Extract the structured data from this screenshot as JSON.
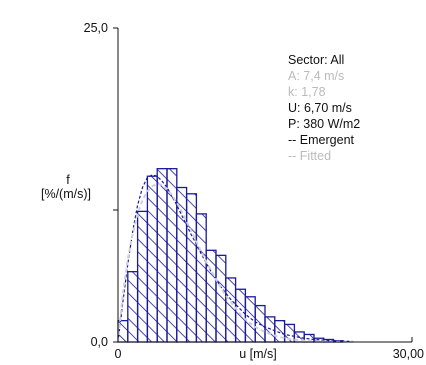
{
  "chart_data": {
    "type": "bar",
    "title": "",
    "xlabel": "u [m/s]",
    "ylabel": [
      "f",
      "[%/(m/s)]"
    ],
    "xlim": [
      0,
      30
    ],
    "ylim": [
      0,
      25
    ],
    "x_tick_labels": [
      "0",
      "u [m/s]",
      "30,00"
    ],
    "y_tick_labels": [
      "25,0",
      "0,0"
    ],
    "bin_width": 1,
    "bins_x_start": [
      0,
      1,
      2,
      3,
      4,
      5,
      6,
      7,
      8,
      9,
      10,
      11,
      12,
      13,
      14,
      15,
      16,
      17,
      18,
      19,
      20,
      21,
      22,
      23,
      24,
      25,
      26,
      27,
      28,
      29
    ],
    "values": [
      1.7,
      5.6,
      10.4,
      13.2,
      13.8,
      13.8,
      12.3,
      11.8,
      10.2,
      7.3,
      6.9,
      5.1,
      4.2,
      3.6,
      2.9,
      2.0,
      1.7,
      1.4,
      0.8,
      0.6,
      0.3,
      0.2,
      0.1,
      0,
      0,
      0,
      0,
      0,
      0,
      0
    ],
    "series": [
      {
        "name": "Emergent",
        "type": "line",
        "x": [
          0,
          0.5,
          1,
          1.5,
          2,
          2.5,
          3,
          3.5,
          4,
          4.5,
          5,
          5.5,
          6,
          6.5,
          7,
          7.5,
          8,
          8.5,
          9,
          9.5,
          10,
          10.5,
          11,
          11.5,
          12,
          12.5,
          13,
          13.5,
          14,
          15,
          16,
          17,
          18,
          19,
          20,
          22,
          24
        ],
        "y": [
          0,
          3.2,
          6.2,
          8.8,
          10.9,
          12.3,
          13.1,
          13.3,
          13.2,
          12.8,
          12.3,
          11.6,
          10.9,
          10.1,
          9.3,
          8.5,
          7.8,
          7.0,
          6.3,
          5.6,
          5.0,
          4.4,
          3.9,
          3.4,
          3.0,
          2.6,
          2.2,
          1.9,
          1.6,
          1.2,
          0.9,
          0.6,
          0.45,
          0.3,
          0.2,
          0.1,
          0.04
        ]
      },
      {
        "name": "Fitted",
        "type": "line",
        "x": [
          0,
          0.5,
          1,
          1.5,
          2,
          2.5,
          3,
          3.5,
          4,
          4.5,
          5,
          5.5,
          6,
          6.5,
          7,
          7.5,
          8,
          8.5,
          9,
          9.5,
          10,
          10.5,
          11,
          11.5,
          12,
          12.5,
          13,
          13.5,
          14,
          15,
          16,
          17,
          18,
          19,
          20,
          22,
          24
        ],
        "y": [
          0,
          3.9,
          6.6,
          8.6,
          10.2,
          11.3,
          12.0,
          12.4,
          12.6,
          12.5,
          12.2,
          11.7,
          11.1,
          10.4,
          9.6,
          8.8,
          8.0,
          7.2,
          6.4,
          5.7,
          5.0,
          4.3,
          3.7,
          3.2,
          2.7,
          2.2,
          1.8,
          1.5,
          1.2,
          0.8,
          0.5,
          0.3,
          0.18,
          0.1,
          0.06,
          0.02,
          0.01
        ]
      }
    ],
    "stats": [
      {
        "text": "Sector: All",
        "color": "#111111"
      },
      {
        "text": "A: 7,4 m/s",
        "color": "#bbbbbb"
      },
      {
        "text": "k: 1,78",
        "color": "#bbbbbb"
      },
      {
        "text": "U: 6,70 m/s",
        "color": "#111111"
      },
      {
        "text": "P: 380 W/m2",
        "color": "#111111"
      },
      {
        "text": "-- Emergent",
        "color": "#111111"
      },
      {
        "text": "-- Fitted",
        "color": "#bbbbbb"
      }
    ],
    "colors": {
      "bar_edge": "#1a1a99",
      "hatch": "#1a1a99",
      "emergent_line": "#1a1a99",
      "fitted_line": "#cfcfe0",
      "axis": "#111111"
    },
    "grid": false,
    "legend_position": "top-right"
  }
}
